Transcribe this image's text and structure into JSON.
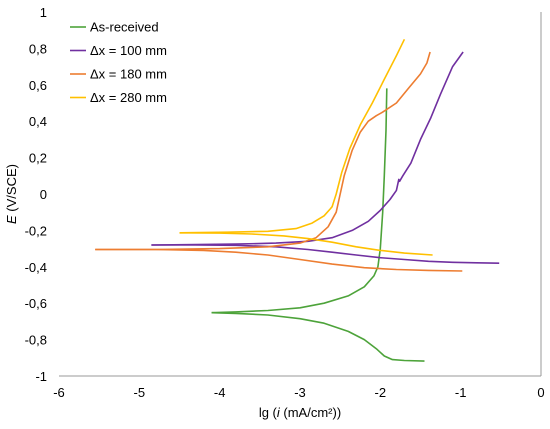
{
  "chart_data": {
    "type": "line",
    "xlabel_parts": [
      "lg (",
      "i",
      " (mA/cm²))"
    ],
    "ylabel_parts": [
      "E",
      " (V/SCE)"
    ],
    "xlim": [
      -6,
      0
    ],
    "ylim": [
      -1,
      1
    ],
    "xticks": [
      -6,
      -5,
      -4,
      -3,
      -2,
      -1,
      0
    ],
    "yticks": [
      1,
      0.8,
      0.6,
      0.4,
      0.2,
      0,
      -0.2,
      -0.4,
      -0.6,
      -0.8,
      -1
    ],
    "xtick_labels": [
      "-6",
      "-5",
      "-4",
      "-3",
      "-2",
      "-1",
      "0"
    ],
    "ytick_labels": [
      "1",
      "0,8",
      "0,6",
      "0,4",
      "0,2",
      "0",
      "-0,2",
      "-0,4",
      "-0,6",
      "-0,8",
      "-1"
    ],
    "grid": false,
    "legend_position": "top-left",
    "series": [
      {
        "name": "As-received",
        "color": "#4DA33A",
        "segments": [
          [
            [
              -1.92,
              0.58
            ],
            [
              -1.93,
              0.35
            ],
            [
              -1.95,
              0.1
            ],
            [
              -1.97,
              -0.1
            ],
            [
              -2.0,
              -0.3
            ],
            [
              -2.03,
              -0.4
            ],
            [
              -2.08,
              -0.45
            ],
            [
              -2.2,
              -0.51
            ],
            [
              -2.4,
              -0.56
            ],
            [
              -2.7,
              -0.6
            ],
            [
              -3.0,
              -0.625
            ],
            [
              -3.4,
              -0.64
            ],
            [
              -3.8,
              -0.648
            ],
            [
              -4.1,
              -0.652
            ]
          ],
          [
            [
              -4.1,
              -0.652
            ],
            [
              -3.8,
              -0.656
            ],
            [
              -3.4,
              -0.665
            ],
            [
              -3.0,
              -0.685
            ],
            [
              -2.7,
              -0.71
            ],
            [
              -2.4,
              -0.755
            ],
            [
              -2.2,
              -0.8
            ],
            [
              -2.05,
              -0.85
            ],
            [
              -1.95,
              -0.89
            ],
            [
              -1.85,
              -0.91
            ],
            [
              -1.7,
              -0.915
            ],
            [
              -1.45,
              -0.918
            ]
          ]
        ]
      },
      {
        "name": "Δx = 100 mm",
        "color": "#7030A0",
        "segments": [
          [
            [
              -0.97,
              0.78
            ],
            [
              -1.1,
              0.7
            ],
            [
              -1.25,
              0.55
            ],
            [
              -1.37,
              0.42
            ],
            [
              -1.5,
              0.3
            ],
            [
              -1.62,
              0.17
            ],
            [
              -1.72,
              0.1
            ],
            [
              -1.76,
              0.07
            ],
            [
              -1.77,
              0.08
            ],
            [
              -1.8,
              0.02
            ],
            [
              -1.88,
              -0.03
            ],
            [
              -2.0,
              -0.09
            ],
            [
              -2.15,
              -0.15
            ],
            [
              -2.35,
              -0.2
            ],
            [
              -2.6,
              -0.24
            ],
            [
              -2.9,
              -0.26
            ],
            [
              -3.3,
              -0.27
            ],
            [
              -3.8,
              -0.275
            ],
            [
              -4.3,
              -0.278
            ],
            [
              -4.85,
              -0.28
            ]
          ],
          [
            [
              -4.85,
              -0.28
            ],
            [
              -4.3,
              -0.28
            ],
            [
              -3.8,
              -0.282
            ],
            [
              -3.3,
              -0.29
            ],
            [
              -2.9,
              -0.305
            ],
            [
              -2.6,
              -0.32
            ],
            [
              -2.3,
              -0.335
            ],
            [
              -2.0,
              -0.35
            ],
            [
              -1.7,
              -0.36
            ],
            [
              -1.4,
              -0.37
            ],
            [
              -1.1,
              -0.375
            ],
            [
              -0.8,
              -0.378
            ],
            [
              -0.52,
              -0.38
            ]
          ]
        ]
      },
      {
        "name": "Δx = 180 mm",
        "color": "#ED7D31",
        "segments": [
          [
            [
              -1.38,
              0.78
            ],
            [
              -1.42,
              0.72
            ],
            [
              -1.5,
              0.66
            ],
            [
              -1.65,
              0.58
            ],
            [
              -1.8,
              0.5
            ],
            [
              -1.97,
              0.45
            ],
            [
              -2.05,
              0.43
            ],
            [
              -2.15,
              0.4
            ],
            [
              -2.25,
              0.34
            ],
            [
              -2.35,
              0.24
            ],
            [
              -2.45,
              0.1
            ],
            [
              -2.5,
              0.0
            ],
            [
              -2.55,
              -0.1
            ],
            [
              -2.65,
              -0.18
            ],
            [
              -2.8,
              -0.24
            ],
            [
              -3.0,
              -0.27
            ],
            [
              -3.4,
              -0.29
            ],
            [
              -4.0,
              -0.3
            ],
            [
              -4.8,
              -0.305
            ],
            [
              -5.55,
              -0.305
            ]
          ],
          [
            [
              -5.55,
              -0.305
            ],
            [
              -4.8,
              -0.305
            ],
            [
              -4.2,
              -0.31
            ],
            [
              -3.8,
              -0.32
            ],
            [
              -3.4,
              -0.335
            ],
            [
              -3.0,
              -0.36
            ],
            [
              -2.6,
              -0.385
            ],
            [
              -2.2,
              -0.405
            ],
            [
              -1.8,
              -0.415
            ],
            [
              -1.4,
              -0.42
            ],
            [
              -0.98,
              -0.423
            ]
          ]
        ]
      },
      {
        "name": "Δx = 280 mm",
        "color": "#FFC000",
        "segments": [
          [
            [
              -1.7,
              0.85
            ],
            [
              -1.8,
              0.76
            ],
            [
              -1.95,
              0.63
            ],
            [
              -2.1,
              0.5
            ],
            [
              -2.25,
              0.38
            ],
            [
              -2.38,
              0.25
            ],
            [
              -2.48,
              0.12
            ],
            [
              -2.55,
              0.0
            ],
            [
              -2.6,
              -0.07
            ],
            [
              -2.62,
              -0.08
            ],
            [
              -2.7,
              -0.12
            ],
            [
              -2.85,
              -0.16
            ],
            [
              -3.05,
              -0.19
            ],
            [
              -3.4,
              -0.205
            ],
            [
              -3.9,
              -0.21
            ],
            [
              -4.5,
              -0.213
            ]
          ],
          [
            [
              -4.5,
              -0.213
            ],
            [
              -4.0,
              -0.215
            ],
            [
              -3.6,
              -0.22
            ],
            [
              -3.2,
              -0.23
            ],
            [
              -2.9,
              -0.245
            ],
            [
              -2.6,
              -0.265
            ],
            [
              -2.3,
              -0.29
            ],
            [
              -2.0,
              -0.31
            ],
            [
              -1.7,
              -0.325
            ],
            [
              -1.35,
              -0.335
            ]
          ]
        ]
      }
    ]
  }
}
